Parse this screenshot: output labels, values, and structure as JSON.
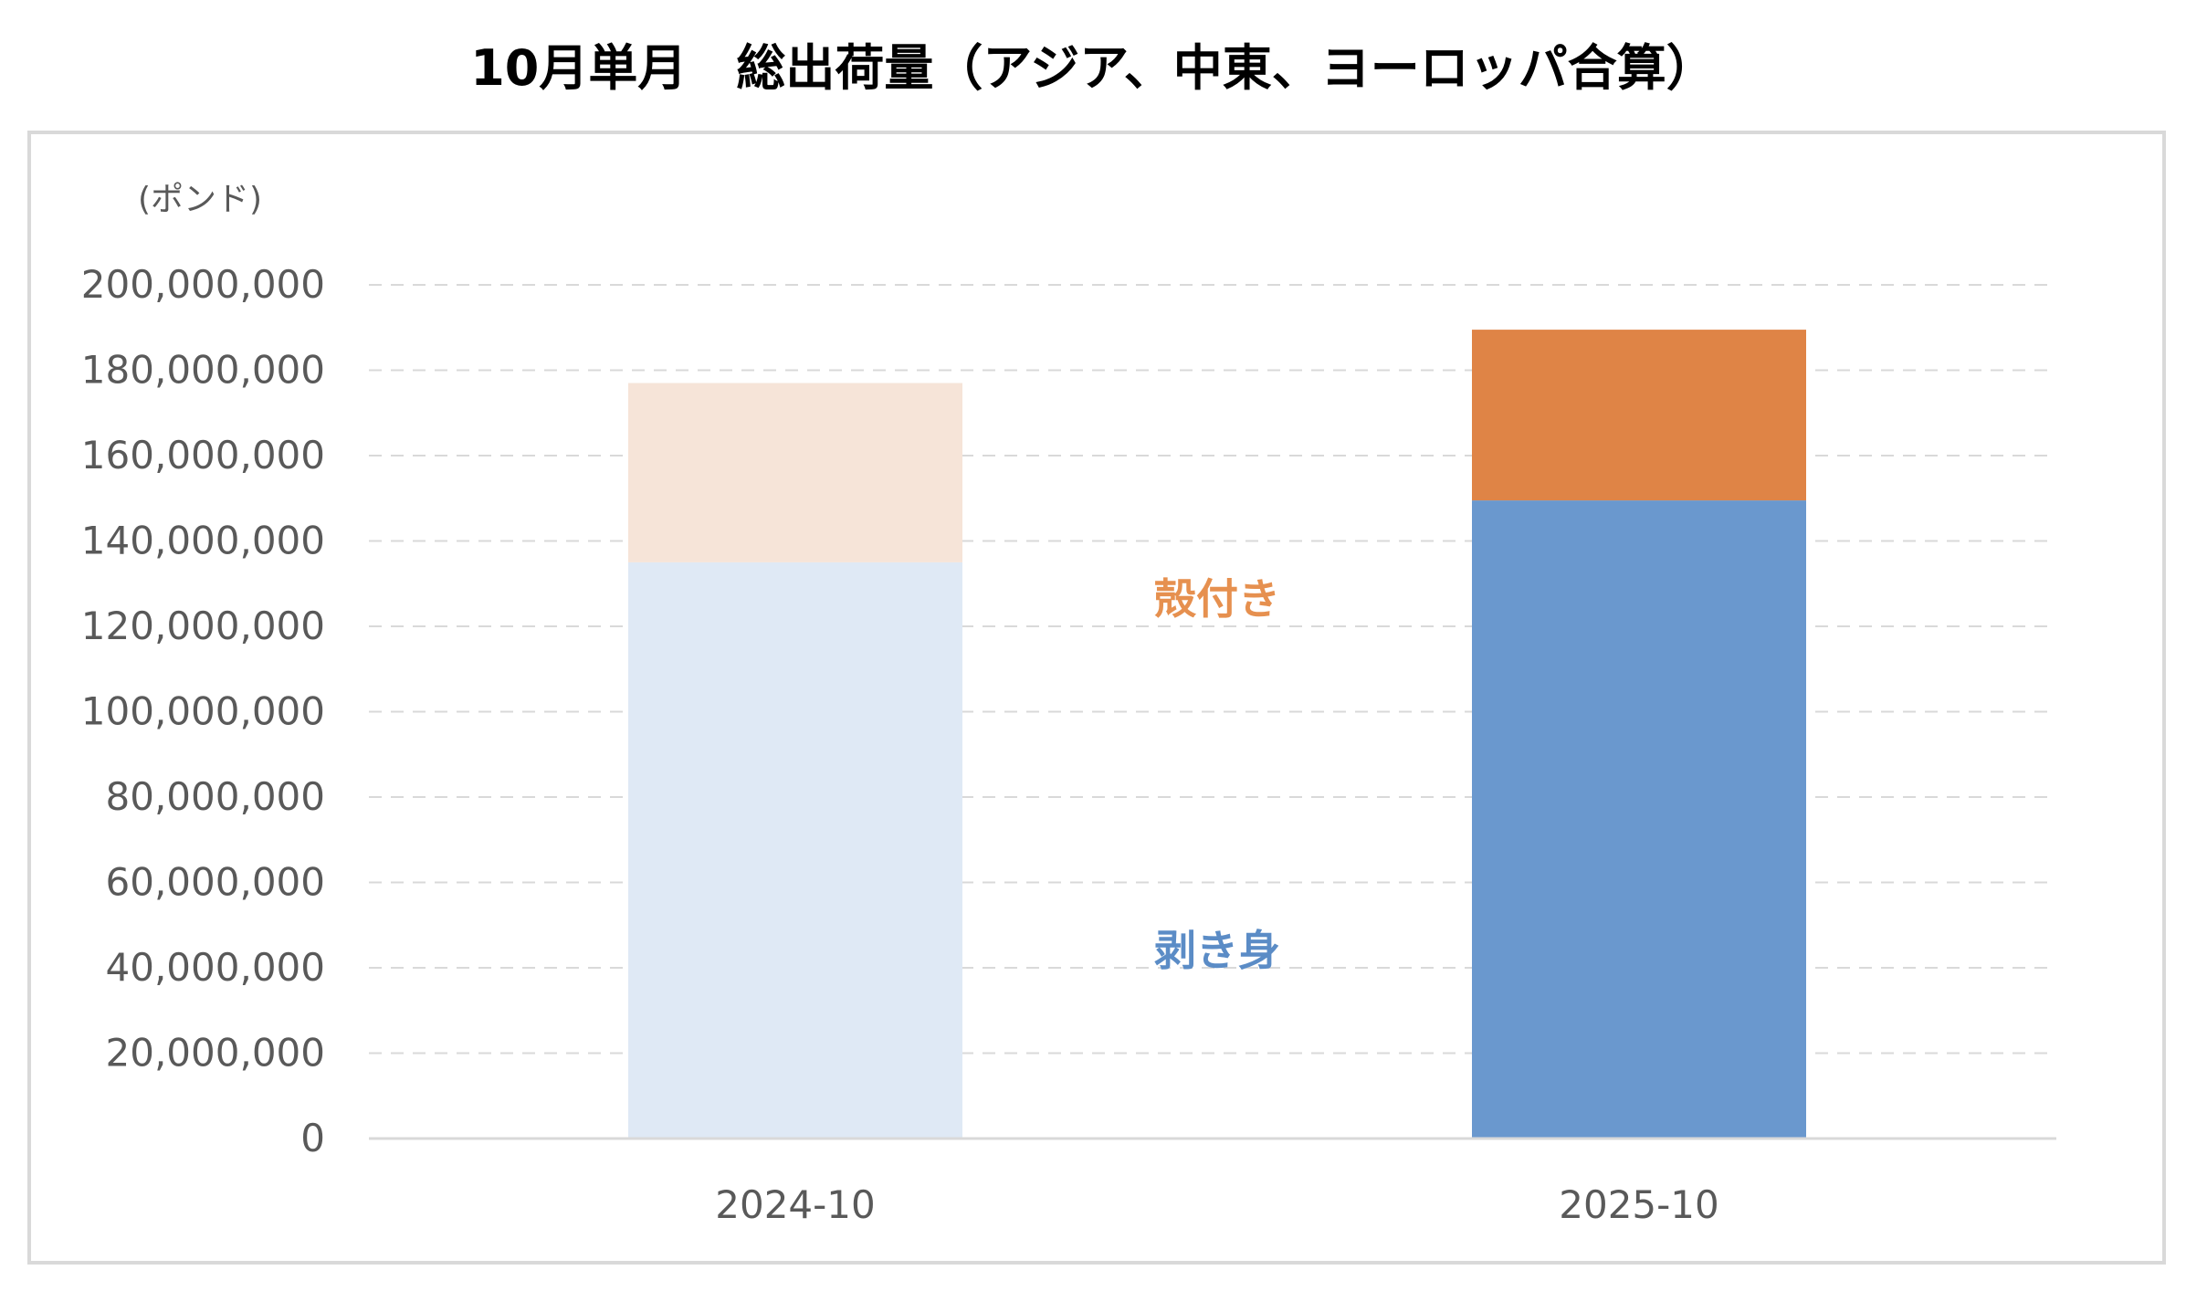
{
  "chart_data": {
    "type": "bar",
    "stacked": true,
    "title": "10月単月　総出荷量（アジア、中東、ヨーロッパ合算）",
    "unit_label": "(ポンド)",
    "xlabel": "",
    "ylabel": "",
    "categories": [
      "2024-10",
      "2025-10"
    ],
    "ylim": [
      0,
      200000000
    ],
    "yticks": [
      0,
      20000000,
      40000000,
      60000000,
      80000000,
      100000000,
      120000000,
      140000000,
      160000000,
      180000000,
      200000000
    ],
    "ytick_labels": [
      "0",
      "20,000,000",
      "40,000,000",
      "60,000,000",
      "80,000,000",
      "100,000,000",
      "120,000,000",
      "140,000,000",
      "160,000,000",
      "180,000,000",
      "200,000,000"
    ],
    "grid": true,
    "series": [
      {
        "name": "剥き身",
        "values": [
          135000000,
          149500000
        ],
        "colors": [
          "#dfe9f5",
          "#6a98ce"
        ],
        "label_color": "#5b8cc6"
      },
      {
        "name": "殻付き",
        "values": [
          42000000,
          40000000
        ],
        "colors": [
          "#f6e4d8",
          "#df8446"
        ],
        "label_color": "#e6904f"
      }
    ]
  }
}
